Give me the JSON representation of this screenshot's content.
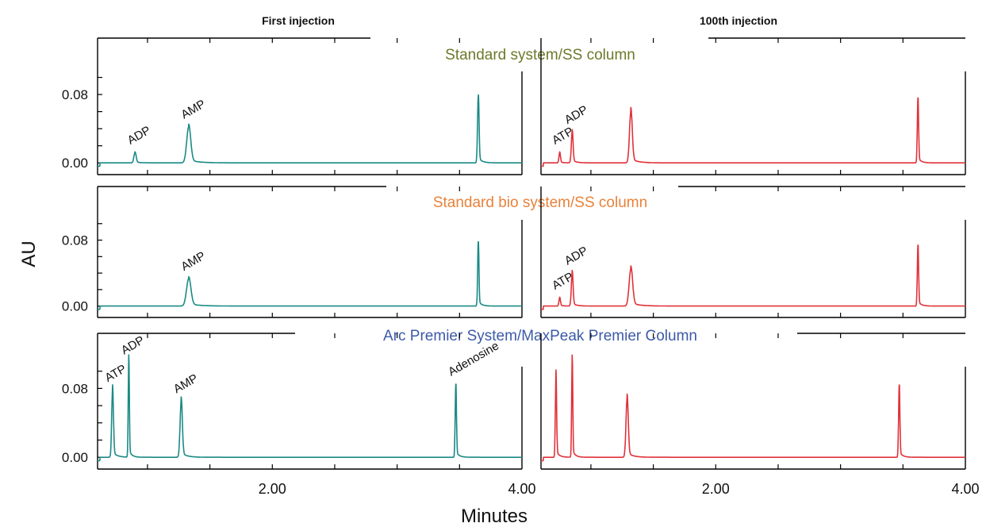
{
  "chart_data": {
    "type": "line",
    "xlabel": "Minutes",
    "ylabel": "AU",
    "column_headers": [
      "First injection",
      "100th injection"
    ],
    "x_ticks": [
      "2.00",
      "4.00"
    ],
    "y_ticks": [
      "0.00",
      "0.08"
    ],
    "xlim": [
      0.6,
      4.0
    ],
    "ylim": [
      -0.01,
      0.12
    ],
    "series_colors": {
      "first": "#1a8a86",
      "hundredth": "#e0323a"
    },
    "rows": [
      {
        "title": "Standard system/SS column",
        "title_color": "#6b7a2a",
        "panels": [
          {
            "series": "first",
            "peaks": [
              {
                "t": 0.9,
                "h": 0.012,
                "w": 0.018,
                "label": "ADP"
              },
              {
                "t": 1.33,
                "h": 0.042,
                "w": 0.032,
                "label": "AMP"
              },
              {
                "t": 3.65,
                "h": 0.078,
                "w": 0.012,
                "label": ""
              }
            ]
          },
          {
            "series": "hundredth",
            "peaks": [
              {
                "t": 0.75,
                "h": 0.012,
                "w": 0.012,
                "label": "ATP"
              },
              {
                "t": 0.85,
                "h": 0.036,
                "w": 0.014,
                "label": "ADP"
              },
              {
                "t": 1.32,
                "h": 0.06,
                "w": 0.022,
                "label": ""
              },
              {
                "t": 3.62,
                "h": 0.076,
                "w": 0.01,
                "label": ""
              }
            ]
          }
        ]
      },
      {
        "title": "Standard bio system/SS column",
        "title_color": "#e8823a",
        "panels": [
          {
            "series": "first",
            "peaks": [
              {
                "t": 1.33,
                "h": 0.033,
                "w": 0.035,
                "label": "AMP"
              },
              {
                "t": 3.65,
                "h": 0.078,
                "w": 0.01,
                "label": ""
              }
            ]
          },
          {
            "series": "hundredth",
            "peaks": [
              {
                "t": 0.75,
                "h": 0.01,
                "w": 0.012,
                "label": "ATP"
              },
              {
                "t": 0.85,
                "h": 0.04,
                "w": 0.014,
                "label": "ADP"
              },
              {
                "t": 1.32,
                "h": 0.045,
                "w": 0.028,
                "label": ""
              },
              {
                "t": 3.62,
                "h": 0.074,
                "w": 0.01,
                "label": ""
              }
            ]
          }
        ]
      },
      {
        "title": "Arc Premier System/MaxPeak Premier Column",
        "title_color": "#3d5aa8",
        "panels": [
          {
            "series": "first",
            "peaks": [
              {
                "t": 0.72,
                "h": 0.078,
                "w": 0.014,
                "label": "ATP"
              },
              {
                "t": 0.85,
                "h": 0.11,
                "w": 0.009,
                "label": "ADP"
              },
              {
                "t": 1.27,
                "h": 0.065,
                "w": 0.018,
                "label": "AMP"
              },
              {
                "t": 3.47,
                "h": 0.085,
                "w": 0.01,
                "label": "Adenosine"
              }
            ]
          },
          {
            "series": "hundredth",
            "peaks": [
              {
                "t": 0.72,
                "h": 0.094,
                "w": 0.01,
                "label": ""
              },
              {
                "t": 0.85,
                "h": 0.11,
                "w": 0.009,
                "label": ""
              },
              {
                "t": 1.29,
                "h": 0.068,
                "w": 0.018,
                "label": ""
              },
              {
                "t": 3.47,
                "h": 0.084,
                "w": 0.01,
                "label": ""
              }
            ]
          }
        ]
      }
    ]
  }
}
